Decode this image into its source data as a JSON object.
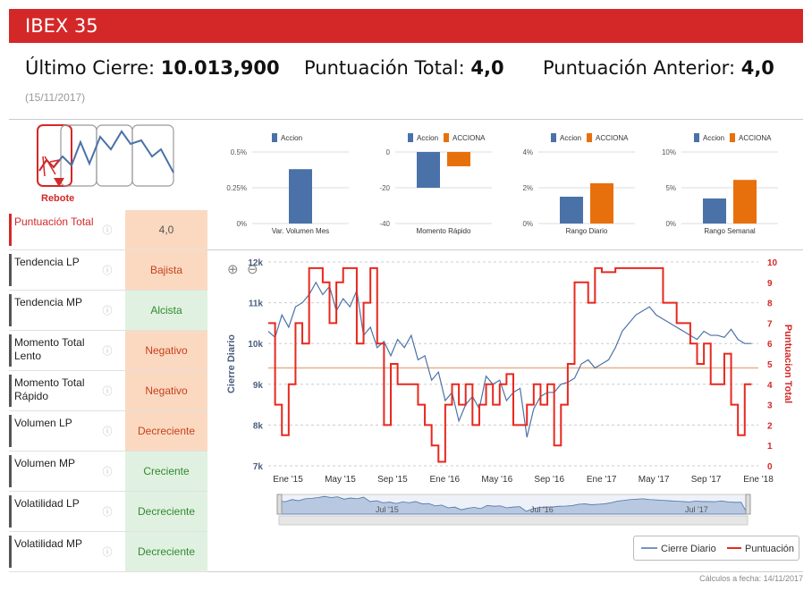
{
  "header": {
    "title": "IBEX 35"
  },
  "summary": {
    "last_close_label": "Último Cierre:",
    "last_close_value": "10.013,900",
    "total_label": "Puntuación Total:",
    "total_value": "4,0",
    "prev_label": "Puntuación Anterior:",
    "prev_value": "4,0",
    "date": "(15/11/2017)"
  },
  "logo": {
    "label": "Rebote"
  },
  "indicators": [
    {
      "label": "Puntuación Total",
      "value": "4,0",
      "style": "neutral",
      "highlight": true
    },
    {
      "label": "Tendencia LP",
      "value": "Bajista",
      "style": "orange",
      "highlight": false
    },
    {
      "label": "Tendencia MP",
      "value": "Alcista",
      "style": "green",
      "highlight": false
    },
    {
      "label": "Momento Total Lento",
      "value": "Negativo",
      "style": "orange",
      "highlight": false
    },
    {
      "label": "Momento Total Rápido",
      "value": "Negativo",
      "style": "orange",
      "highlight": false
    },
    {
      "label": "Volumen LP",
      "value": "Decreciente",
      "style": "orange",
      "highlight": false
    },
    {
      "label": "Volumen MP",
      "value": "Creciente",
      "style": "green",
      "highlight": false
    },
    {
      "label": "Volatilidad LP",
      "value": "Decreciente",
      "style": "green",
      "highlight": false
    },
    {
      "label": "Volatilidad MP",
      "value": "Decreciente",
      "style": "green",
      "highlight": false
    }
  ],
  "colors": {
    "accent": "#d42828",
    "series_blue": "#4a72a8",
    "series_orange": "#e8700c",
    "series_red": "#e8281e"
  },
  "chart_data": [
    {
      "type": "bar",
      "category": "Var. Volumen Mes",
      "series": [
        {
          "name": "Accion",
          "values": [
            0.38
          ]
        }
      ],
      "yticks": [
        "0.5%",
        "0.25%",
        "0%"
      ],
      "ylim": [
        0,
        0.5
      ]
    },
    {
      "type": "bar",
      "category": "Momento Rápido",
      "series": [
        {
          "name": "Accion",
          "values": [
            -20
          ]
        },
        {
          "name": "ACCIONA",
          "values": [
            -8
          ]
        }
      ],
      "yticks": [
        "0",
        "-20",
        "-40"
      ],
      "ylim": [
        -40,
        0
      ]
    },
    {
      "type": "bar",
      "category": "Rango Diario",
      "series": [
        {
          "name": "Accion",
          "values": [
            1.5
          ]
        },
        {
          "name": "ACCIONA",
          "values": [
            2.25
          ]
        }
      ],
      "yticks": [
        "4%",
        "2%",
        "0%"
      ],
      "ylim": [
        0,
        4
      ]
    },
    {
      "type": "bar",
      "category": "Rango Semanal",
      "series": [
        {
          "name": "Accion",
          "values": [
            3.5
          ]
        },
        {
          "name": "ACCIONA",
          "values": [
            6.1
          ]
        }
      ],
      "yticks": [
        "10%",
        "5%",
        "0%"
      ],
      "ylim": [
        0,
        10
      ]
    },
    {
      "type": "line",
      "xticks": [
        "Ene '15",
        "May '15",
        "Sep '15",
        "Ene '16",
        "May '16",
        "Sep '16",
        "Ene '17",
        "May '17",
        "Sep '17",
        "Ene '18"
      ],
      "ylabel_left": "Cierre Diario",
      "ylabel_right": "Puntuacion Total",
      "yticks_left": [
        "12k",
        "11k",
        "10k",
        "9k",
        "8k",
        "7k"
      ],
      "ylim_left": [
        7000,
        12000
      ],
      "yticks_right": [
        "10",
        "9",
        "8",
        "7",
        "6",
        "5",
        "4",
        "3",
        "2",
        "1",
        "0"
      ],
      "ylim_right": [
        0,
        10
      ],
      "reference_line_right": 4.8,
      "series": [
        {
          "name": "Cierre Diario",
          "x": [
            0,
            0.5,
            1,
            1.5,
            2,
            2.5,
            3,
            3.5,
            4,
            4.5,
            5,
            5.5,
            6,
            6.5,
            7,
            7.5,
            8,
            8.5,
            9,
            9.5,
            10,
            10.5,
            11,
            11.5,
            12,
            12.5,
            13,
            13.5,
            14,
            14.5,
            15,
            15.5,
            16,
            16.5,
            17,
            17.5,
            18,
            18.5,
            19,
            19.5,
            20,
            20.5,
            21,
            21.5,
            22,
            22.5,
            23,
            23.5,
            24,
            24.5,
            25,
            25.5,
            26,
            26.5,
            27,
            27.5,
            28,
            28.5,
            29,
            29.5,
            30,
            30.5,
            31,
            31.5,
            32,
            32.5,
            33,
            33.5,
            34,
            34.5,
            35,
            35.5
          ],
          "values": [
            10300,
            10150,
            10700,
            10400,
            10900,
            11000,
            11200,
            11500,
            11200,
            11400,
            10800,
            11100,
            10900,
            11300,
            10200,
            10400,
            9900,
            10050,
            9700,
            10100,
            9900,
            10200,
            9600,
            9700,
            9100,
            9300,
            8600,
            8800,
            8100,
            8500,
            8700,
            8400,
            9200,
            9000,
            9100,
            8600,
            8800,
            8900,
            7700,
            8400,
            8700,
            8800,
            8800,
            9000,
            9050,
            9150,
            9500,
            9600,
            9400,
            9500,
            9600,
            9900,
            10300,
            10500,
            10700,
            10800,
            10900,
            10700,
            10600,
            10500,
            10400,
            10300,
            10200,
            10100,
            10300,
            10200,
            10200,
            10150,
            10350,
            10100,
            10000,
            10000
          ]
        },
        {
          "name": "Puntuación",
          "x": [
            0,
            0.5,
            1,
            1.5,
            2,
            2.5,
            3,
            3.5,
            4,
            4.5,
            5,
            5.5,
            6,
            6.5,
            7,
            7.5,
            8,
            8.5,
            9,
            9.5,
            10,
            10.5,
            11,
            11.5,
            12,
            12.5,
            13,
            13.5,
            14,
            14.5,
            15,
            15.5,
            16,
            16.5,
            17,
            17.5,
            18,
            18.5,
            19,
            19.5,
            20,
            20.5,
            21,
            21.5,
            22,
            22.5,
            23,
            23.5,
            24,
            24.5,
            25,
            25.5,
            26,
            26.5,
            27,
            27.5,
            28,
            28.5,
            29,
            29.5,
            30,
            30.5,
            31,
            31.5,
            32,
            32.5,
            33,
            33.5,
            34,
            34.5,
            35,
            35.5
          ],
          "values": [
            7,
            3,
            1.5,
            4,
            7,
            6,
            9.7,
            9.7,
            9,
            7,
            9,
            9.7,
            9.7,
            6,
            8,
            9.7,
            6,
            2,
            5,
            4,
            4,
            4,
            3,
            2,
            1,
            0.2,
            3,
            4,
            3,
            4,
            2,
            3,
            4,
            3,
            4,
            4.5,
            2,
            2,
            3,
            4,
            3,
            4,
            1,
            3,
            5,
            9,
            9,
            8,
            9.7,
            9.5,
            9.5,
            9.7,
            9.7,
            9.7,
            9.7,
            9.7,
            9.7,
            9.7,
            8,
            8,
            7,
            7,
            6,
            5,
            6,
            4,
            4,
            5.5,
            3,
            1.5,
            4,
            4
          ]
        }
      ],
      "navigator": {
        "xticks": [
          "Jul '15",
          "Jul '16",
          "Jul '17"
        ]
      },
      "legend": [
        "Cierre Diario",
        "Puntuación"
      ]
    }
  ],
  "footer": {
    "note": "Cálculos a fecha: 14/11/2017"
  }
}
